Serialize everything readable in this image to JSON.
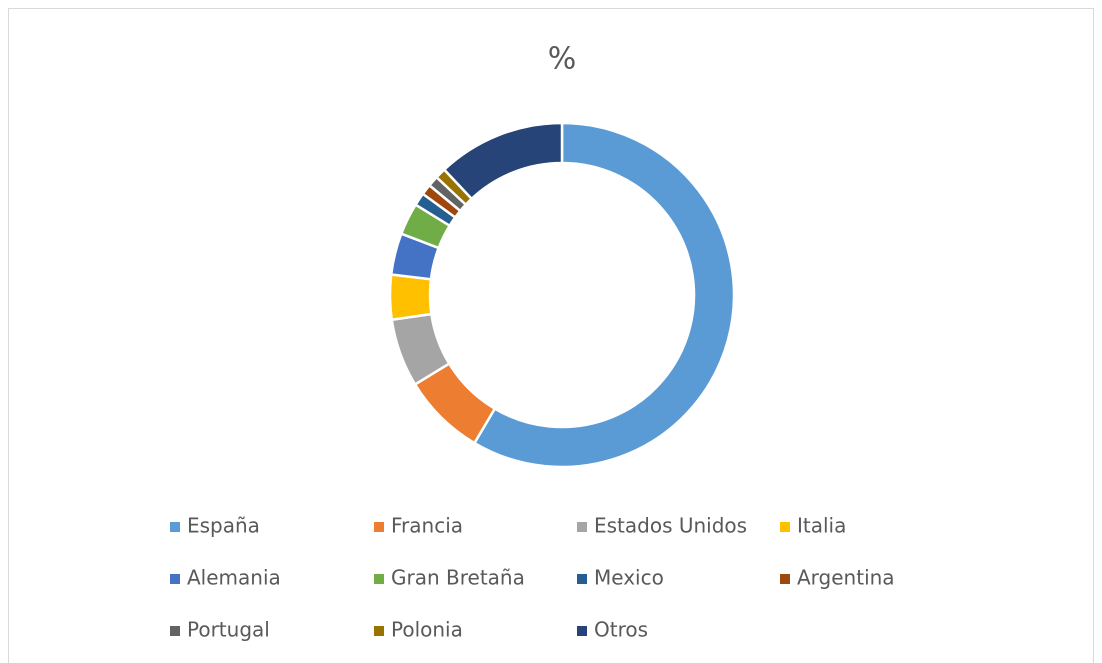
{
  "chart_data": {
    "type": "donut",
    "title": "%",
    "categories": [
      "España",
      "Francia",
      "Estados Unidos",
      "Italia",
      "Alemania",
      "Gran Bretaña",
      "Mexico",
      "Argentina",
      "Portugal",
      "Polonia",
      "Otros"
    ],
    "values": [
      58.5,
      7.8,
      6.4,
      4.2,
      3.9,
      3,
      1.2,
      1,
      1,
      1,
      12
    ],
    "colors": [
      "#5b9bd5",
      "#ed7d31",
      "#a5a5a5",
      "#ffc000",
      "#4472c4",
      "#70ad47",
      "#255e91",
      "#9e480e",
      "#636363",
      "#997300",
      "#264478"
    ],
    "legend": "bottom"
  }
}
